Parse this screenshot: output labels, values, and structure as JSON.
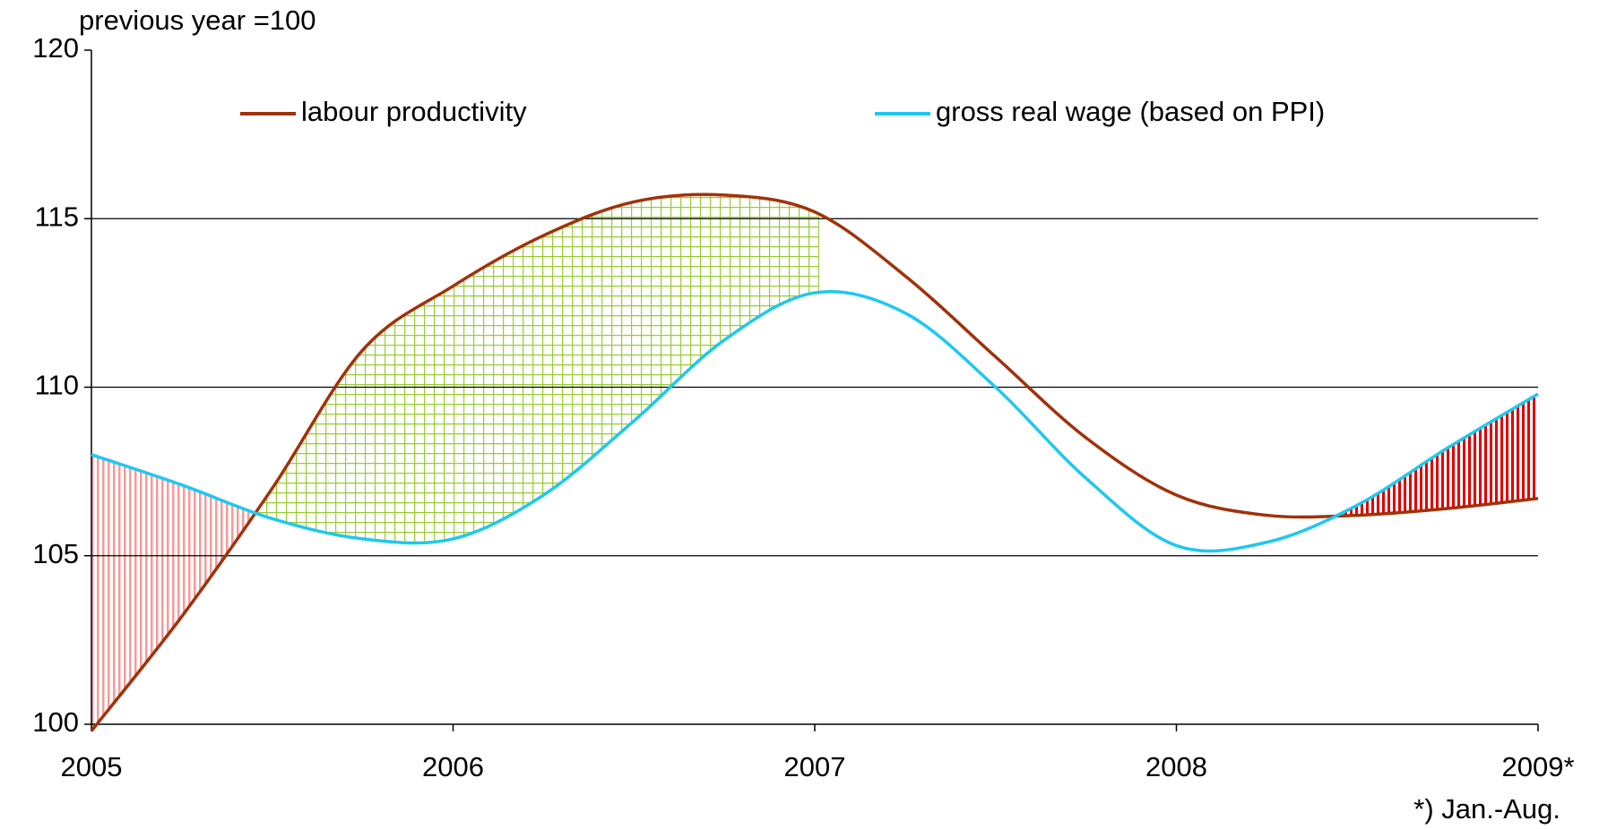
{
  "chart_data": {
    "type": "line",
    "y_label": "previous year =100",
    "note": "*) Jan.-Aug.",
    "x": [
      2005,
      2005.25,
      2005.5,
      2005.75,
      2006,
      2006.25,
      2006.5,
      2006.75,
      2007,
      2007.25,
      2007.5,
      2007.75,
      2008,
      2008.25,
      2008.5,
      2008.75,
      2009
    ],
    "series": [
      {
        "name": "labour productivity",
        "color": "#a0320a",
        "values": [
          99.8,
          103.2,
          107.0,
          111.1,
          113.0,
          114.5,
          115.5,
          115.7,
          115.2,
          113.3,
          110.9,
          108.5,
          106.8,
          106.2,
          106.2,
          106.4,
          106.7
        ]
      },
      {
        "name": "gross real wage (based on PPI)",
        "color": "#1ec8f0",
        "values": [
          108.0,
          107.1,
          106.1,
          105.5,
          105.5,
          106.8,
          109.0,
          111.4,
          112.8,
          112.2,
          110.0,
          107.3,
          105.3,
          105.4,
          106.5,
          108.2,
          109.8
        ]
      }
    ],
    "xlim": [
      2005,
      2009
    ],
    "xticks": [
      {
        "value": 2005,
        "label": "2005"
      },
      {
        "value": 2006,
        "label": "2006"
      },
      {
        "value": 2007,
        "label": "2007"
      },
      {
        "value": 2008,
        "label": "2008"
      },
      {
        "value": 2009,
        "label": "2009*"
      }
    ],
    "ylim": [
      100,
      120
    ],
    "yticks": [
      100,
      105,
      110,
      115,
      120
    ],
    "grid": true,
    "legend": "top"
  }
}
